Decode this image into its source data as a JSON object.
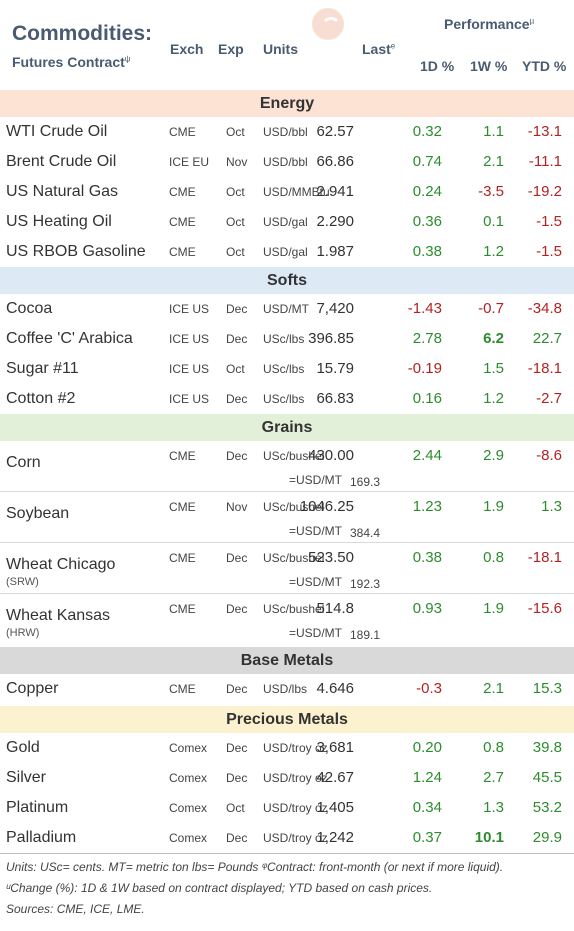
{
  "header": {
    "title_line1": "Commodities:",
    "title_line2": "Futures Contract",
    "title_mark": "ψ",
    "col_exch": "Exch",
    "col_exp": "Exp",
    "col_units": "Units",
    "col_last": "Last",
    "col_last_mark": "e",
    "performance": "Performance",
    "performance_mark": "µ",
    "col_1d": "1D %",
    "col_1w": "1W %",
    "col_ytd": "YTD %"
  },
  "sections": {
    "energy": "Energy",
    "softs": "Softs",
    "grains": "Grains",
    "base_metals": "Base Metals",
    "precious_metals": "Precious Metals"
  },
  "colors": {
    "energy": "#fde3d3",
    "softs": "#dde9f5",
    "grains": "#e2f0d9",
    "base_metals": "#d9d9d9",
    "precious_metals": "#fdf2d0",
    "positive": "#2e8b2e",
    "negative": "#b22222"
  },
  "energy": [
    {
      "name": "WTI Crude Oil",
      "exch": "CME",
      "exp": "Oct",
      "units": "USD/bbl",
      "last": "62.57",
      "d1": "0.32",
      "w1": "1.1",
      "ytd": "-13.1"
    },
    {
      "name": "Brent Crude Oil",
      "exch": "ICE EU",
      "exp": "Nov",
      "units": "USD/bbl",
      "last": "66.86",
      "d1": "0.74",
      "w1": "2.1",
      "ytd": "-11.1"
    },
    {
      "name": "US Natural Gas",
      "exch": "CME",
      "exp": "Oct",
      "units": "USD/MMBtu",
      "last": "2.941",
      "d1": "0.24",
      "w1": "-3.5",
      "ytd": "-19.2"
    },
    {
      "name": "US Heating Oil",
      "exch": "CME",
      "exp": "Oct",
      "units": "USD/gal",
      "last": "2.290",
      "d1": "0.36",
      "w1": "0.1",
      "ytd": "-1.5"
    },
    {
      "name": "US RBOB Gasoline",
      "exch": "CME",
      "exp": "Oct",
      "units": "USD/gal",
      "last": "1.987",
      "d1": "0.38",
      "w1": "1.2",
      "ytd": "-1.5"
    }
  ],
  "softs": [
    {
      "name": "Cocoa",
      "exch": "ICE US",
      "exp": "Dec",
      "units": "USD/MT",
      "last": "7,420",
      "d1": "-1.43",
      "w1": "-0.7",
      "ytd": "-34.8"
    },
    {
      "name": "Coffee 'C' Arabica",
      "exch": "ICE US",
      "exp": "Dec",
      "units": "USc/lbs",
      "last": "396.85",
      "d1": "2.78",
      "w1": "6.2",
      "ytd": "22.7"
    },
    {
      "name": "Sugar #11",
      "exch": "ICE US",
      "exp": "Oct",
      "units": "USc/lbs",
      "last": "15.79",
      "d1": "-0.19",
      "w1": "1.5",
      "ytd": "-18.1"
    },
    {
      "name": "Cotton #2",
      "exch": "ICE US",
      "exp": "Dec",
      "units": "USc/lbs",
      "last": "66.83",
      "d1": "0.16",
      "w1": "1.2",
      "ytd": "-2.7"
    }
  ],
  "grains": [
    {
      "name": "Corn",
      "sub": "",
      "exch": "CME",
      "exp": "Dec",
      "units": "USc/bushel",
      "last": "430.00",
      "mt_label": "=USD/MT",
      "mt_value": "169.3",
      "d1": "2.44",
      "w1": "2.9",
      "ytd": "-8.6"
    },
    {
      "name": "Soybean",
      "sub": "",
      "exch": "CME",
      "exp": "Nov",
      "units": "USc/bushel",
      "last": "1046.25",
      "mt_label": "=USD/MT",
      "mt_value": "384.4",
      "d1": "1.23",
      "w1": "1.9",
      "ytd": "1.3"
    },
    {
      "name": "Wheat Chicago",
      "sub": "(SRW)",
      "exch": "CME",
      "exp": "Dec",
      "units": "USc/bushel",
      "last": "523.50",
      "mt_label": "=USD/MT",
      "mt_value": "192.3",
      "d1": "0.38",
      "w1": "0.8",
      "ytd": "-18.1"
    },
    {
      "name": "Wheat Kansas",
      "sub": "(HRW)",
      "exch": "CME",
      "exp": "Dec",
      "units": "USc/bushel",
      "last": "514.8",
      "mt_label": "=USD/MT",
      "mt_value": "189.1",
      "d1": "0.93",
      "w1": "1.9",
      "ytd": "-15.6"
    }
  ],
  "base_metals": [
    {
      "name": "Copper",
      "exch": "CME",
      "exp": "Dec",
      "units": "USD/lbs",
      "last": "4.646",
      "d1": "-0.3",
      "w1": "2.1",
      "ytd": "15.3"
    }
  ],
  "precious_metals": [
    {
      "name": "Gold",
      "exch": "Comex",
      "exp": "Dec",
      "units": "USD/troy oz",
      "last": "3,681",
      "d1": "0.20",
      "w1": "0.8",
      "ytd": "39.8"
    },
    {
      "name": "Silver",
      "exch": "Comex",
      "exp": "Dec",
      "units": "USD/troy oz",
      "last": "42.67",
      "d1": "1.24",
      "w1": "2.7",
      "ytd": "45.5"
    },
    {
      "name": "Platinum",
      "exch": "Comex",
      "exp": "Oct",
      "units": "USD/troy oz",
      "last": "1,405",
      "d1": "0.34",
      "w1": "1.3",
      "ytd": "53.2"
    },
    {
      "name": "Palladium",
      "exch": "Comex",
      "exp": "Dec",
      "units": "USD/troy oz",
      "last": "1,242",
      "d1": "0.37",
      "w1": "10.1",
      "ytd": "29.9"
    }
  ],
  "footer": {
    "line1": "Units: USc= cents.   MT= metric ton    lbs= Pounds  ᵠContract: front-month (or next if more liquid).",
    "line2": "ᵘChange (%): 1D & 1W based on contract displayed; YTD based on cash prices.",
    "line3": "Sources: CME, ICE, LME."
  }
}
